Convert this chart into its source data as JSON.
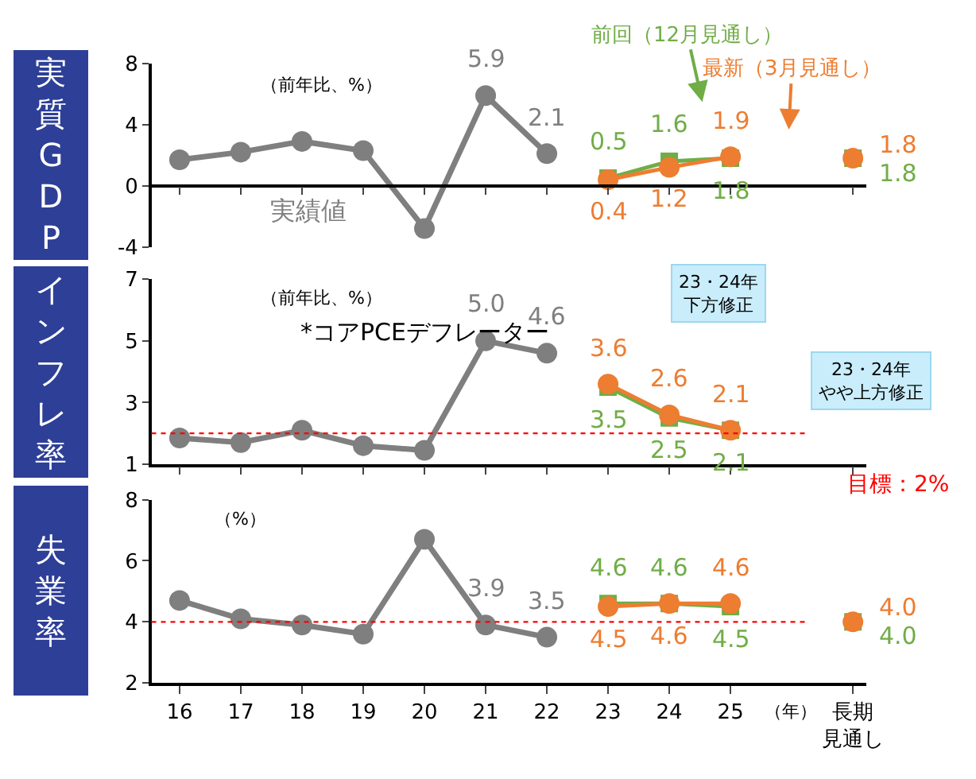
{
  "chart_data": [
    {
      "type": "line",
      "title": "実質GDP",
      "categories": [
        "16",
        "17",
        "18",
        "19",
        "20",
        "21",
        "22",
        "23",
        "24",
        "25",
        null,
        "長期見通し"
      ],
      "ylim": [
        -4,
        8
      ],
      "yticks": [
        -4,
        0,
        4,
        8
      ],
      "tick_labels": "y",
      "line_style": "solid",
      "annotations": [
        "（前年比、%）",
        "23・24年下方修正"
      ],
      "series": [
        {
          "name": "実績値",
          "color": "#7f7f7f",
          "marker": "circle",
          "values": [
            1.7,
            2.2,
            2.9,
            2.3,
            -2.8,
            5.9,
            2.1,
            null,
            null,
            null,
            null,
            null
          ],
          "value_labels": [
            null,
            null,
            null,
            null,
            null,
            "5.9",
            "2.1",
            null,
            null,
            null,
            null,
            null
          ]
        },
        {
          "name": "前回（12月見通し）",
          "color": "#70ad47",
          "marker": "square",
          "values": [
            null,
            null,
            null,
            null,
            null,
            null,
            null,
            0.5,
            1.6,
            1.8,
            null,
            1.8
          ],
          "value_labels": [
            null,
            null,
            null,
            null,
            null,
            null,
            null,
            "0.5",
            "1.6",
            "1.8",
            null,
            "1.8"
          ]
        },
        {
          "name": "最新（3月見通し）",
          "color": "#ed7d31",
          "marker": "circle",
          "values": [
            null,
            null,
            null,
            null,
            null,
            null,
            null,
            0.4,
            1.2,
            1.9,
            null,
            1.8
          ],
          "value_labels": [
            null,
            null,
            null,
            null,
            null,
            null,
            null,
            "0.4",
            "1.2",
            "1.9",
            null,
            "1.8"
          ]
        }
      ]
    },
    {
      "type": "line",
      "title": "インフレ率",
      "categories": [
        "16",
        "17",
        "18",
        "19",
        "20",
        "21",
        "22",
        "23",
        "24",
        "25",
        null,
        "長期見通し"
      ],
      "ylim": [
        1,
        7
      ],
      "yticks": [
        1,
        3,
        5,
        7
      ],
      "tick_labels": "y",
      "line_style": "solid",
      "annotations": [
        "（前年比、%）",
        "*コアPCEデフレーター",
        "23・24年やや上方修正"
      ],
      "ref_lines": [
        {
          "axis": "y",
          "value": 2,
          "label": "目標：2%",
          "color": "#ff0000",
          "line_style": "dotted"
        }
      ],
      "series": [
        {
          "color": "#7f7f7f",
          "marker": "circle",
          "values": [
            1.85,
            1.7,
            2.1,
            1.6,
            1.45,
            5.0,
            4.6,
            null,
            null,
            null,
            null,
            null
          ],
          "value_labels": [
            null,
            null,
            null,
            null,
            null,
            "5.0",
            "4.6",
            null,
            null,
            null,
            null,
            null
          ]
        },
        {
          "color": "#70ad47",
          "marker": "square",
          "values": [
            null,
            null,
            null,
            null,
            null,
            null,
            null,
            3.5,
            2.5,
            2.1,
            null,
            null
          ],
          "value_labels": [
            null,
            null,
            null,
            null,
            null,
            null,
            null,
            "3.5",
            "2.5",
            "2.1",
            null,
            null
          ]
        },
        {
          "color": "#ed7d31",
          "marker": "circle",
          "values": [
            null,
            null,
            null,
            null,
            null,
            null,
            null,
            3.6,
            2.6,
            2.1,
            null,
            null
          ],
          "value_labels": [
            null,
            null,
            null,
            null,
            null,
            null,
            null,
            "3.6",
            "2.6",
            "2.1",
            null,
            null
          ]
        }
      ]
    },
    {
      "type": "line",
      "title": "失業率",
      "categories": [
        "16",
        "17",
        "18",
        "19",
        "20",
        "21",
        "22",
        "23",
        "24",
        "25",
        null,
        "長期見通し"
      ],
      "xlabel": "（年）",
      "ylim": [
        2,
        8
      ],
      "yticks": [
        2,
        4,
        6,
        8
      ],
      "line_style": "solid",
      "annotations": [
        "（%）"
      ],
      "ref_lines": [
        {
          "axis": "y",
          "value": 4,
          "color": "#ff0000",
          "line_style": "dotted"
        }
      ],
      "series": [
        {
          "color": "#7f7f7f",
          "marker": "circle",
          "values": [
            4.7,
            4.1,
            3.9,
            3.6,
            6.7,
            3.9,
            3.5,
            null,
            null,
            null,
            null,
            null
          ],
          "value_labels": [
            null,
            null,
            null,
            null,
            null,
            "3.9",
            "3.5",
            null,
            null,
            null,
            null,
            null
          ]
        },
        {
          "color": "#70ad47",
          "marker": "square",
          "values": [
            null,
            null,
            null,
            null,
            null,
            null,
            null,
            4.6,
            4.6,
            4.5,
            null,
            4.0
          ],
          "value_labels": [
            null,
            null,
            null,
            null,
            null,
            null,
            null,
            "4.6",
            "4.6",
            "4.5",
            null,
            "4.0"
          ]
        },
        {
          "color": "#ed7d31",
          "marker": "circle",
          "values": [
            null,
            null,
            null,
            null,
            null,
            null,
            null,
            4.5,
            4.6,
            4.6,
            null,
            4.0
          ],
          "value_labels": [
            null,
            null,
            null,
            null,
            null,
            null,
            null,
            "4.5",
            "4.6",
            "4.6",
            null,
            "4.0"
          ]
        }
      ]
    }
  ]
}
